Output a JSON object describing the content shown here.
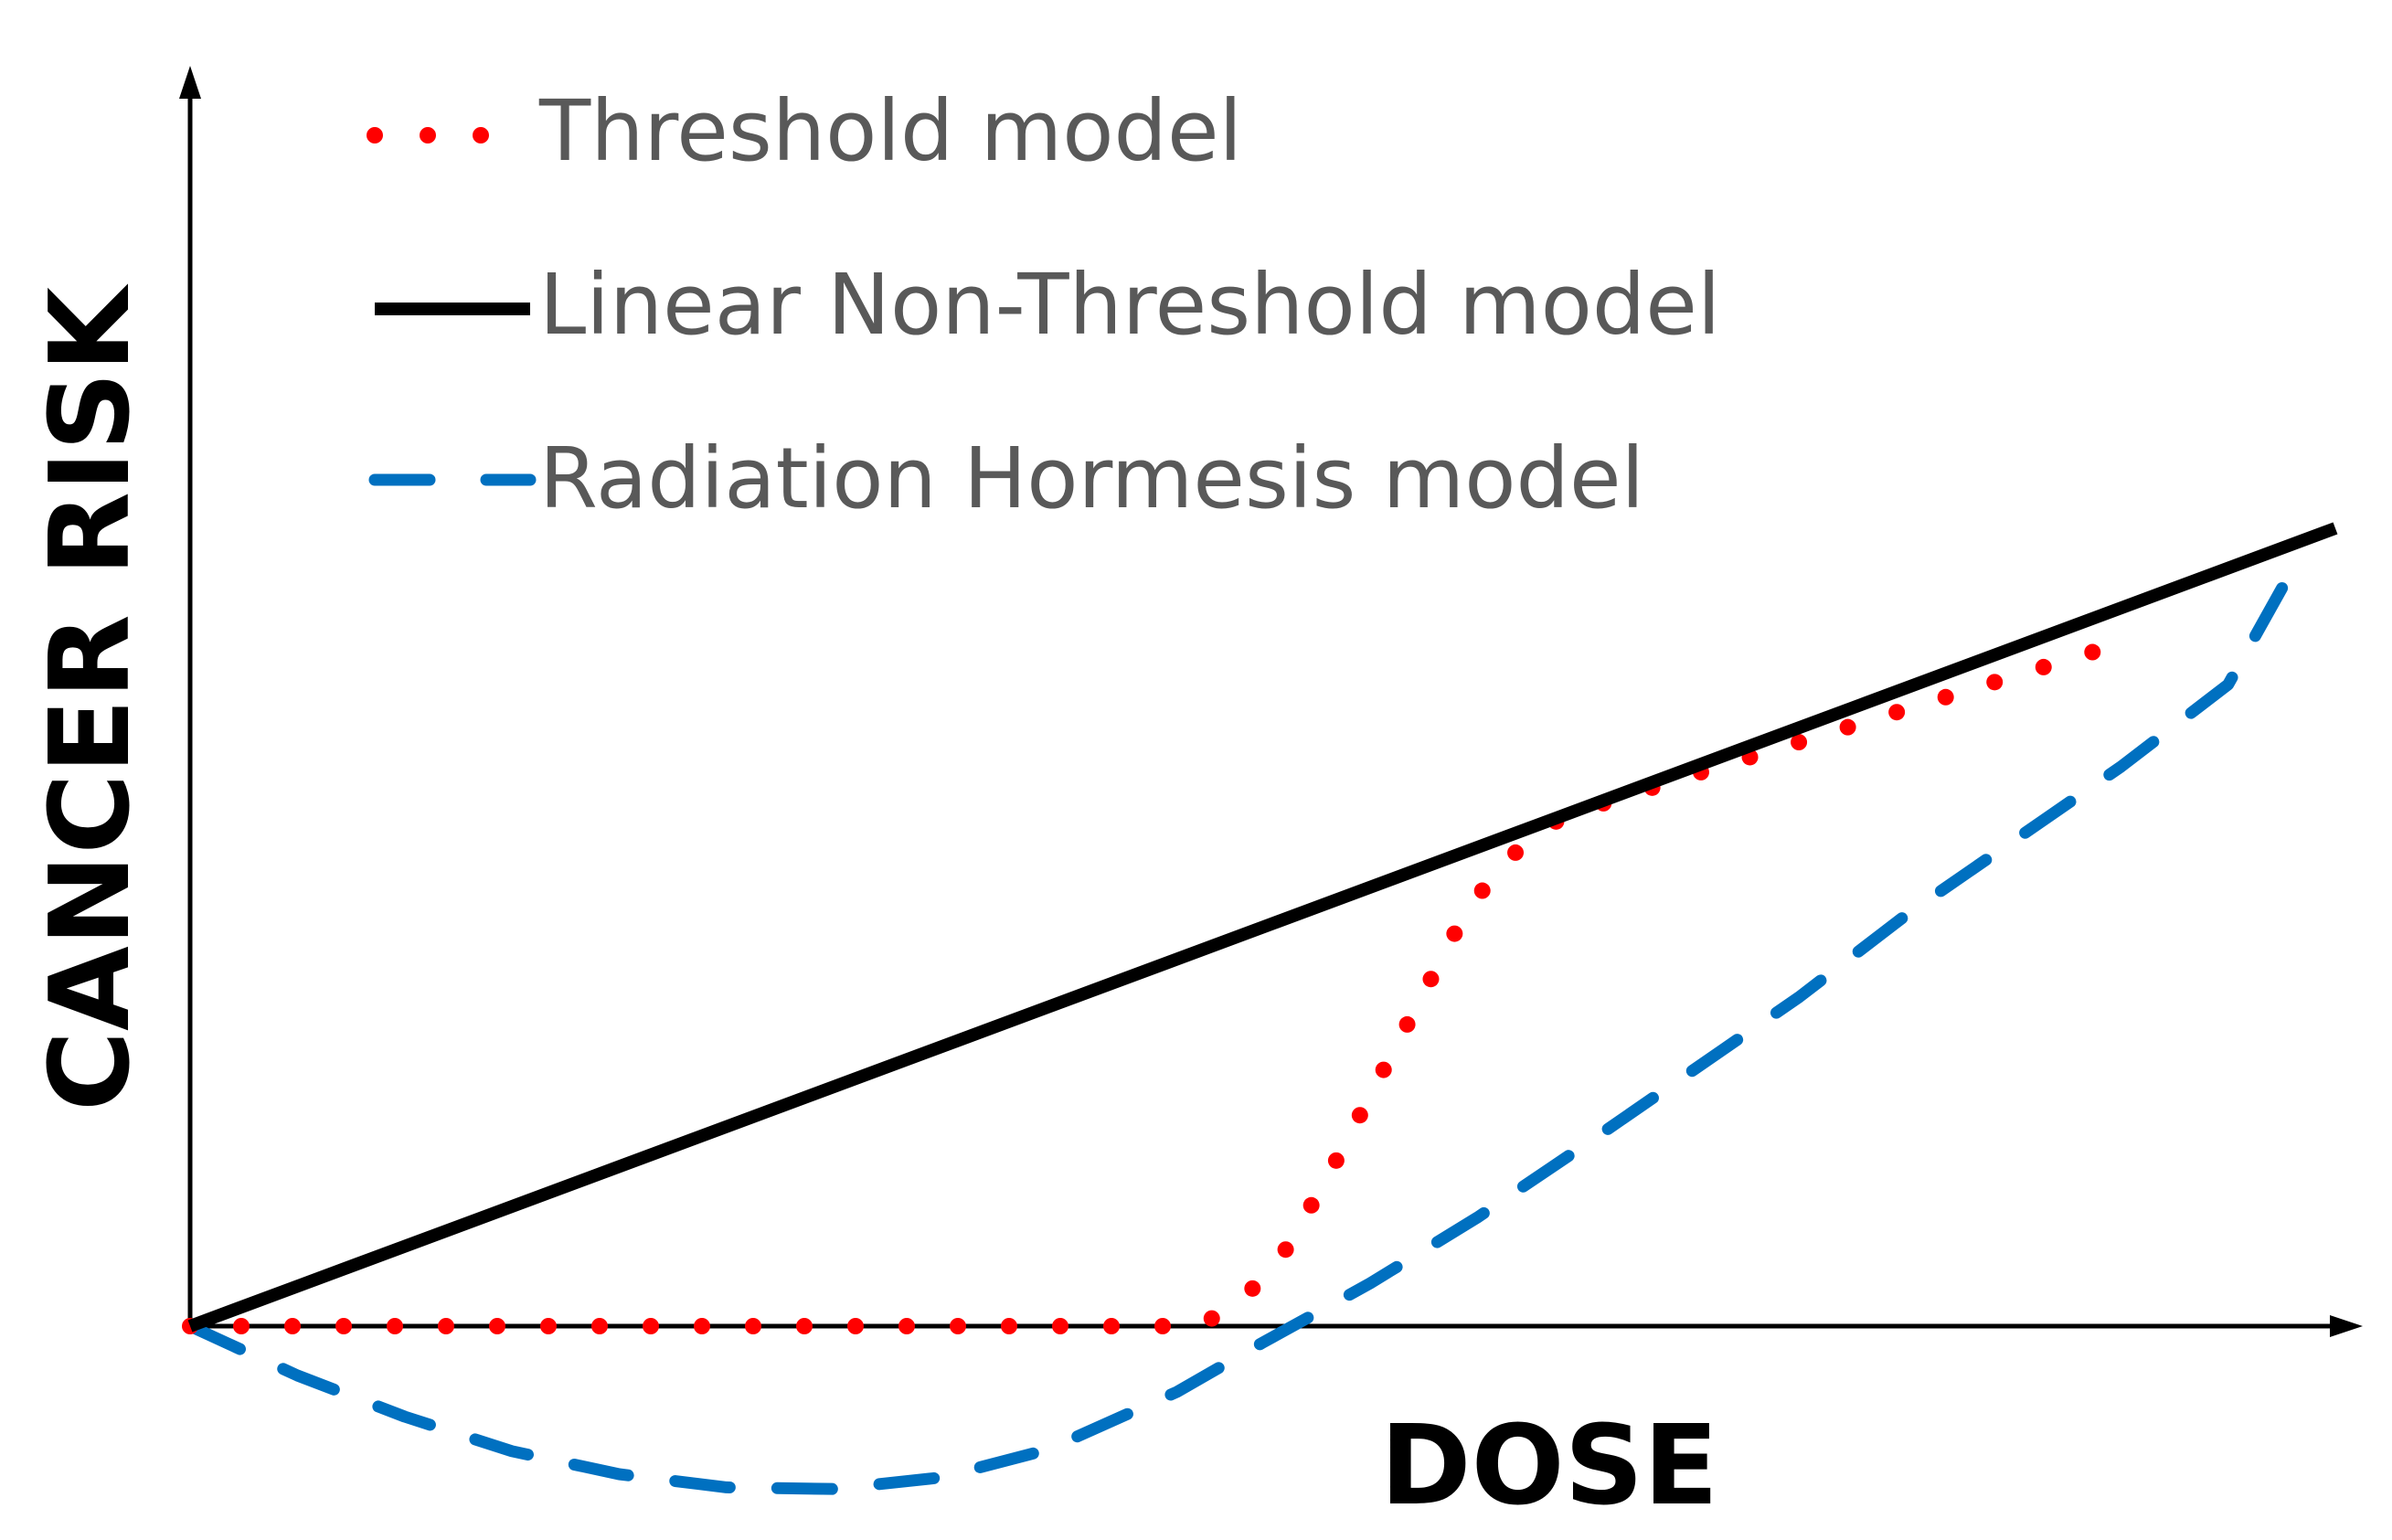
{
  "chart_data": {
    "type": "line",
    "title": "",
    "xlabel": "DOSE",
    "ylabel": "CANCER RISK",
    "xlim": [
      0,
      100
    ],
    "ylim": [
      -10,
      50
    ],
    "grid": false,
    "legend_position": "top-left",
    "series": [
      {
        "name": "Threshold model",
        "style": "dotted",
        "color": "#ff0000",
        "x": [
          0,
          47,
          49,
          51,
          53,
          55,
          57,
          59,
          61,
          64,
          70,
          80,
          90
        ],
        "y": [
          0,
          0,
          1.5,
          4.5,
          9,
          14,
          19,
          24,
          28,
          31,
          33.5,
          37.5,
          41.5
        ]
      },
      {
        "name": "Linear Non-Threshold model",
        "style": "solid",
        "color": "#000000",
        "x": [
          0,
          100
        ],
        "y": [
          0,
          48.5
        ]
      },
      {
        "name": "Radiation Hormesis model",
        "style": "dashed",
        "color": "#0070c0",
        "x": [
          0,
          5,
          10,
          15,
          20,
          25,
          30,
          35,
          40,
          46,
          50,
          55,
          60,
          65,
          70,
          75,
          80,
          85,
          90,
          95,
          98
        ],
        "y": [
          0,
          -3,
          -5.5,
          -7.6,
          -9,
          -9.8,
          -9.9,
          -9.2,
          -7.5,
          -4,
          -1,
          2.6,
          6.6,
          11,
          15.5,
          20,
          25,
          29.5,
          34,
          39,
          46
        ]
      }
    ]
  }
}
